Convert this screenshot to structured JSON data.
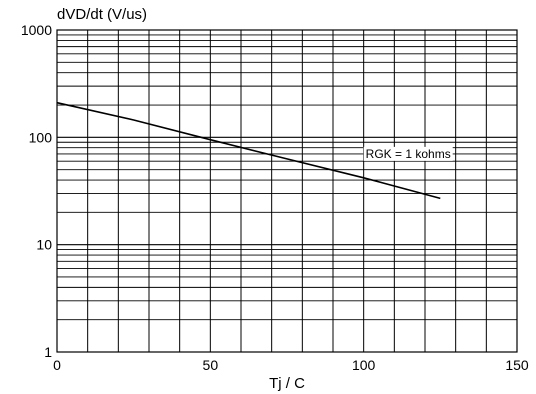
{
  "chart_data": {
    "type": "line",
    "title": "",
    "xlabel": "Tj / C",
    "ylabel": "dVD/dt (V/us)",
    "xlim": [
      0,
      150
    ],
    "ylim": [
      1,
      1000
    ],
    "y_scale": "log",
    "grid": true,
    "x_ticks": [
      0,
      50,
      100,
      150
    ],
    "x_tick_labels": [
      "0",
      "50",
      "100",
      "150"
    ],
    "y_ticks": [
      1,
      10,
      100,
      1000
    ],
    "y_tick_labels": [
      "1",
      "10",
      "100",
      "1000"
    ],
    "series": [
      {
        "x": [
          0,
          25,
          50,
          75,
          100,
          125
        ],
        "y": [
          210,
          145,
          95,
          63,
          42,
          27
        ]
      }
    ],
    "annotations": [
      {
        "text": "RGK = 1 kohms",
        "x": 100,
        "y": 63
      }
    ]
  }
}
